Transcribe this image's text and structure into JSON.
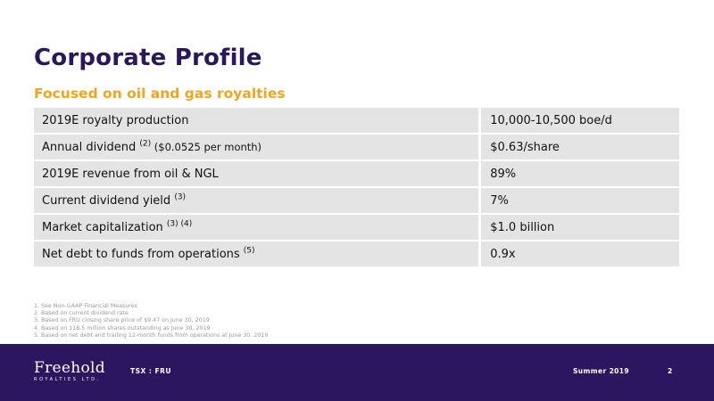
{
  "slide": {
    "title": "Corporate Profile",
    "subtitle": "Focused on oil and gas royalties"
  },
  "table": {
    "rows": [
      {
        "label": "2019E royalty production",
        "note": "",
        "extra": "",
        "value": "10,000-10,500 boe/d"
      },
      {
        "label": "Annual dividend ",
        "note": "(2)",
        "extra": " ($0.0525 per month)",
        "value": "$0.63/share"
      },
      {
        "label": "2019E revenue from oil & NGL",
        "note": "",
        "extra": "",
        "value": "89%"
      },
      {
        "label": "Current dividend yield ",
        "note": "(3)",
        "extra": "",
        "value": "7%"
      },
      {
        "label": "Market capitalization ",
        "note": "(3) (4)",
        "extra": "",
        "value": "$1.0 billion"
      },
      {
        "label": "Net debt to funds from operations ",
        "note": "(5)",
        "extra": "",
        "value": "0.9x"
      }
    ]
  },
  "footnotes": [
    "1. See Non-GAAP Financial Measures",
    "2. Based on current dividend rate",
    "3. Based on FRU closing share price of $9.47 on June 30, 2019",
    "4. Based on 118.5 million shares outstanding as June 30, 2019",
    "5. Based on net debt and trailing 12-month funds from operations at June 30, 2019"
  ],
  "footer": {
    "logo_word": "Freehold",
    "logo_sub": "ROYALTIES LTD.",
    "ticker": "TSX : FRU",
    "season": "Summer 2019",
    "page": "2"
  },
  "colors": {
    "brand_purple": "#2b1660",
    "accent_orange": "#f0a51d",
    "row_gray": "#e4e4e4"
  }
}
